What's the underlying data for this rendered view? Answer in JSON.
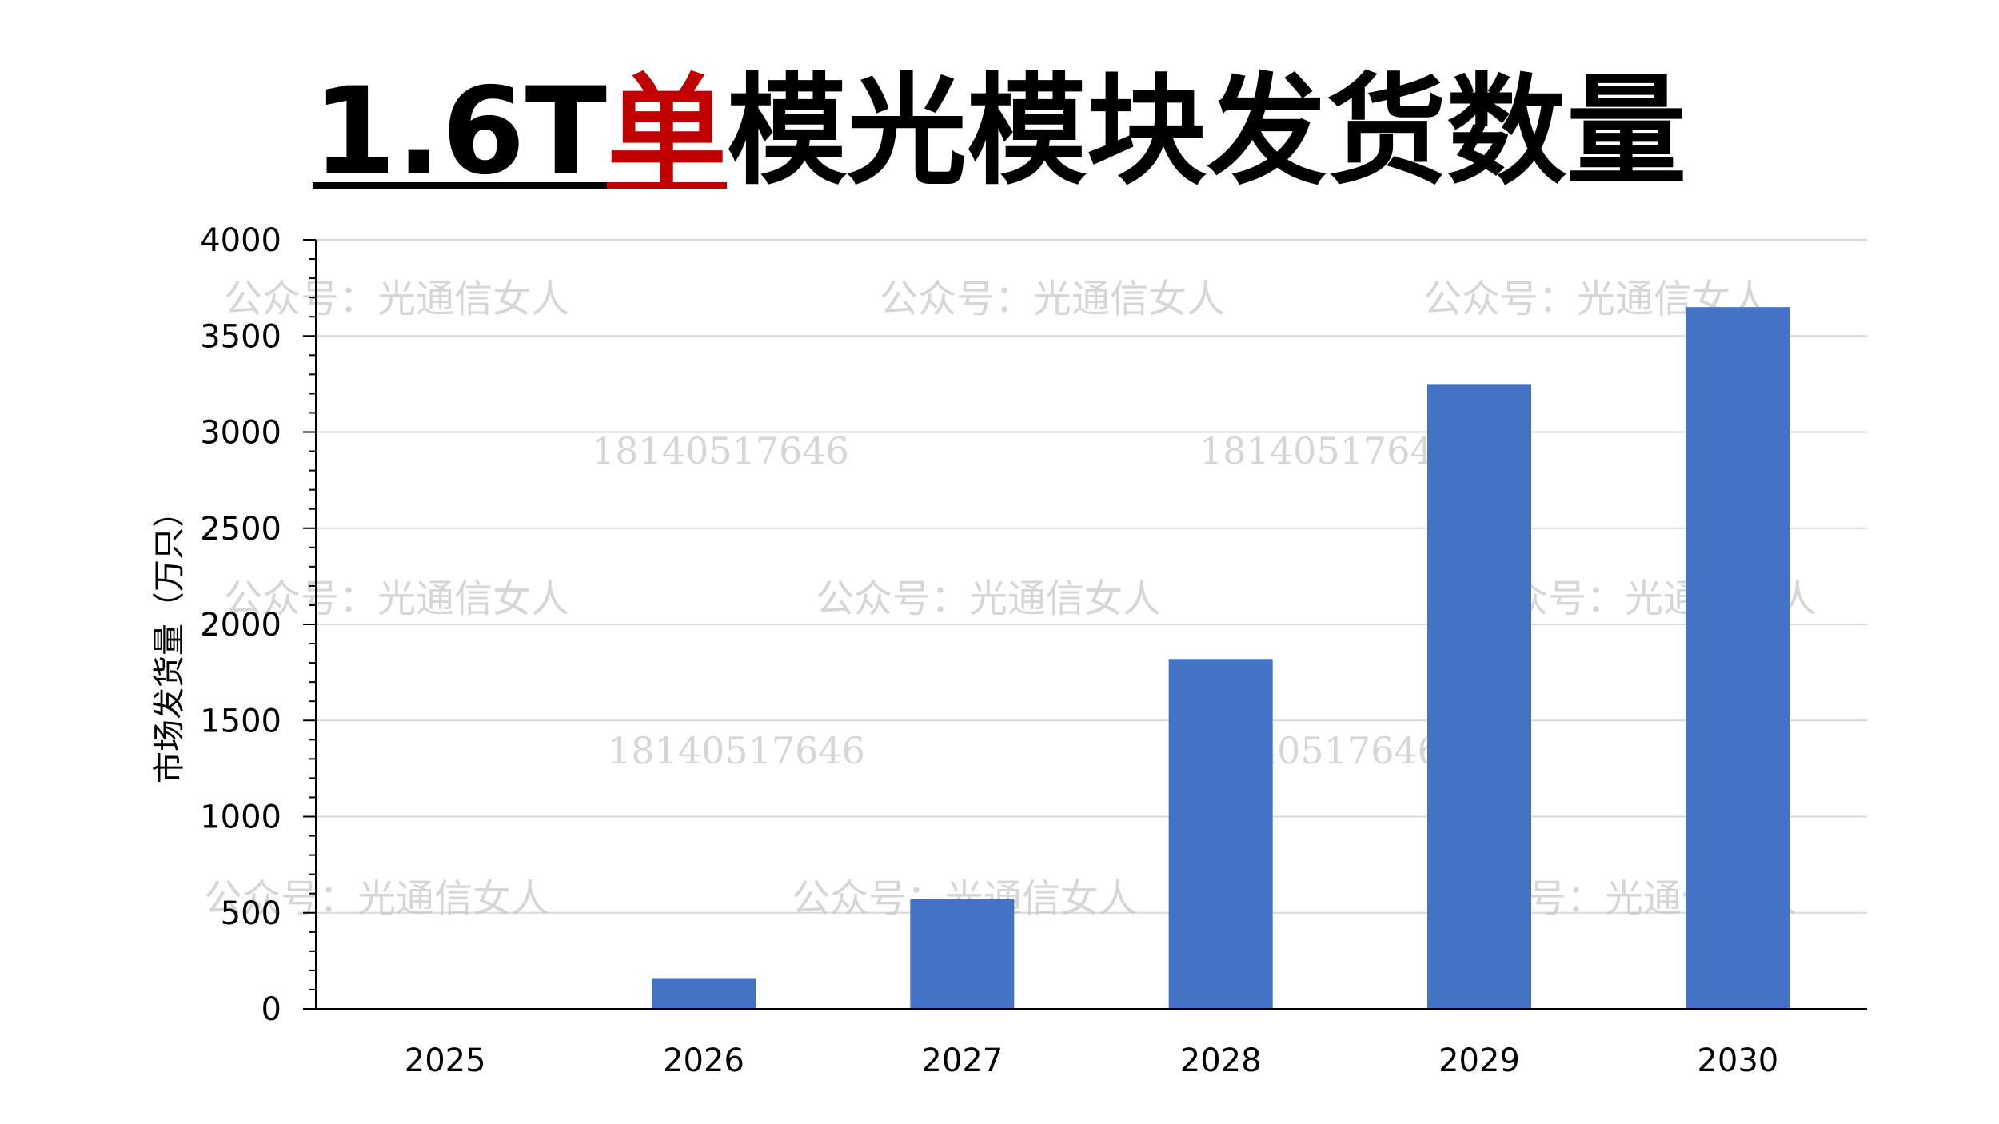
{
  "title": {
    "part1": "1.6T",
    "part2": "单",
    "part3": "模光模块发货数量"
  },
  "watermarks": {
    "account": "公众号：光通信女人",
    "phone": "18140517646"
  },
  "colors": {
    "bar": "#4472c4",
    "title_accent": "#c00000",
    "grid": "#d9d9d9",
    "axis": "#000000"
  },
  "chart_data": {
    "type": "bar",
    "categories": [
      "2025",
      "2026",
      "2027",
      "2028",
      "2029",
      "2030"
    ],
    "values": [
      0,
      160,
      570,
      1820,
      3250,
      3650
    ],
    "ylabel": "市场发货量（万只）",
    "ylim": [
      0,
      4000
    ],
    "yticks": [
      "0",
      "500",
      "1000",
      "1500",
      "2000",
      "2500",
      "3000",
      "3500",
      "4000"
    ],
    "grid": true
  }
}
